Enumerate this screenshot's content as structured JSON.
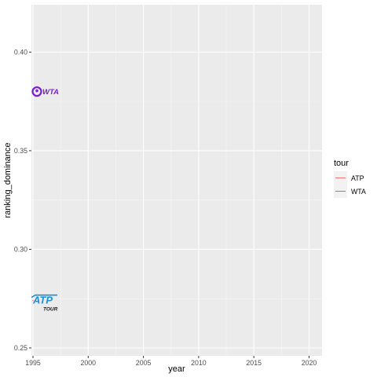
{
  "chart_data": {
    "type": "line",
    "title": "",
    "xlabel": "year",
    "ylabel": "ranking_dominance",
    "xlim": [
      1995,
      2020
    ],
    "ylim": [
      0.25,
      0.42
    ],
    "x_ticks": [
      1995,
      2000,
      2005,
      2010,
      2015,
      2020
    ],
    "x_tick_labels": [
      "1995",
      "2000",
      "2005",
      "2010",
      "2015",
      "2020"
    ],
    "y_ticks": [
      0.25,
      0.3,
      0.35,
      0.4
    ],
    "y_tick_labels": [
      "0.25",
      "0.30",
      "0.35",
      "0.40"
    ],
    "grid": true,
    "legend": {
      "title": "tour",
      "position": "right",
      "entries": [
        {
          "name": "ATP",
          "color": "#F8766D"
        },
        {
          "name": "WTA",
          "color": "#00BFC4"
        }
      ]
    },
    "series": [
      {
        "name": "ATP",
        "color": "#F8766D",
        "points": [
          {
            "x": 1995,
            "y": 0.274
          }
        ]
      },
      {
        "name": "WTA",
        "color": "#00BFC4",
        "points": [
          {
            "x": 1995,
            "y": 0.38
          }
        ]
      }
    ],
    "logos": [
      {
        "series": "WTA",
        "x": 1995,
        "y": 0.38,
        "text": "WTA",
        "color": "#7a1fd1"
      },
      {
        "series": "ATP",
        "x": 1995,
        "y": 0.274,
        "text": "ATP",
        "subtext": "TOUR",
        "color": "#1f8fd6"
      }
    ]
  },
  "colors": {
    "panel_background": "#EBEBEB",
    "grid_major": "#FFFFFF",
    "tick_text": "#4D4D4D"
  }
}
